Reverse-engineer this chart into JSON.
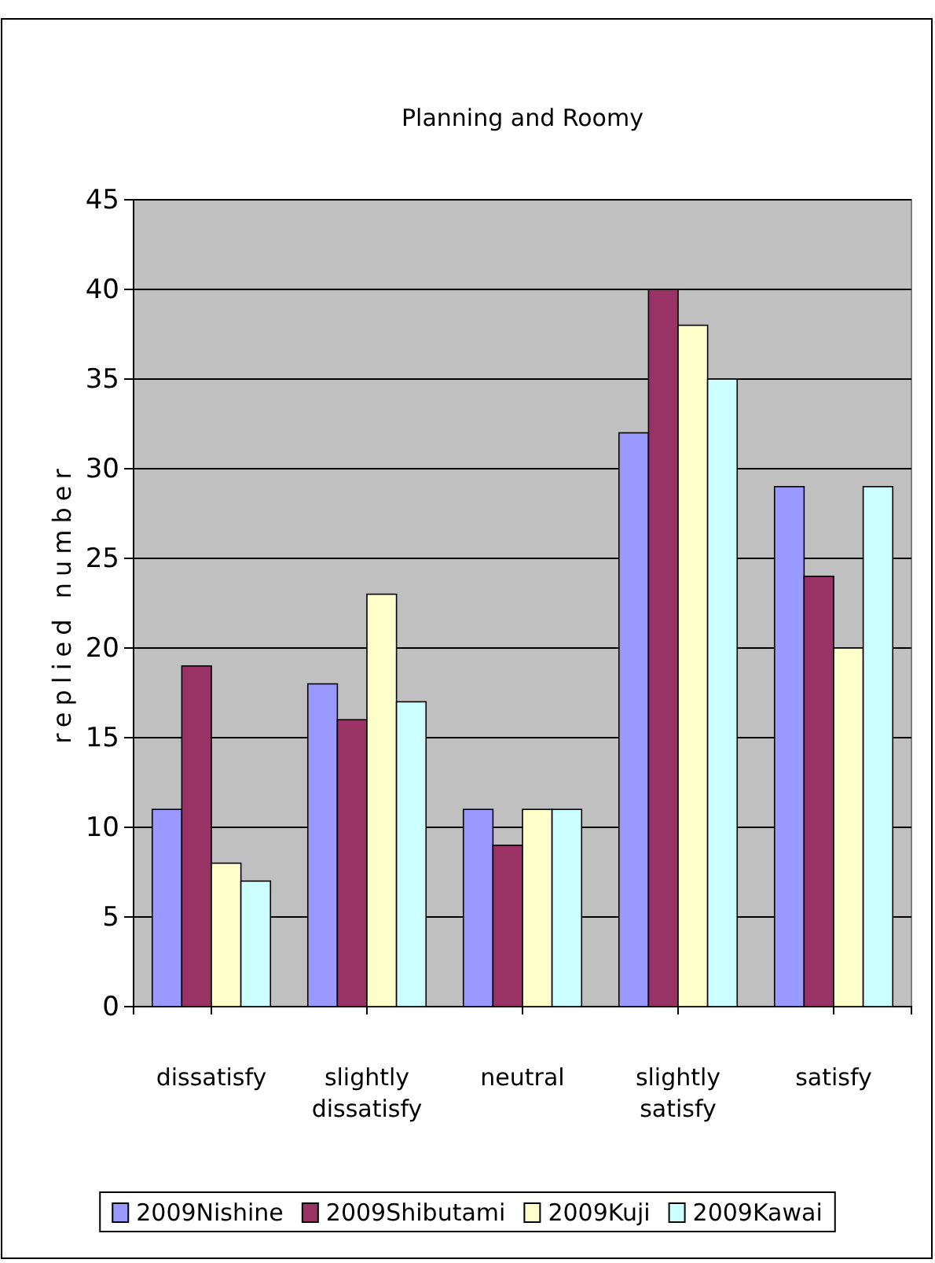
{
  "chart_data": {
    "type": "bar",
    "title": "Planning and Roomy",
    "ylabel": "replied number",
    "categories": [
      "dissatisfy",
      "slightly dissatisfy",
      "neutral",
      "slightly satisfy",
      "satisfy"
    ],
    "series": [
      {
        "name": "2009Nishine",
        "color": "#9999ff",
        "values": [
          11,
          18,
          11,
          32,
          29
        ]
      },
      {
        "name": "2009Shibutami",
        "color": "#993366",
        "values": [
          19,
          16,
          9,
          40,
          24
        ]
      },
      {
        "name": "2009Kuji",
        "color": "#ffffcc",
        "values": [
          8,
          23,
          11,
          38,
          20
        ]
      },
      {
        "name": "2009Kawai",
        "color": "#ccffff",
        "values": [
          7,
          17,
          11,
          35,
          29
        ]
      }
    ],
    "ylim": [
      0,
      45
    ],
    "yticks": [
      0,
      5,
      10,
      15,
      20,
      25,
      30,
      35,
      40,
      45
    ],
    "grid": "y",
    "legend": "bottom"
  }
}
